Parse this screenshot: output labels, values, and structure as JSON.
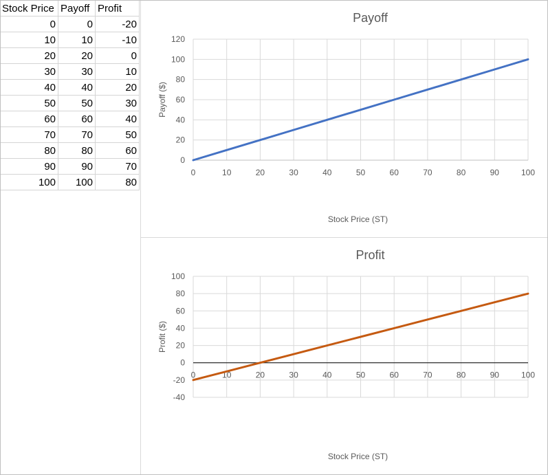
{
  "table": {
    "headers": [
      "Stock Price",
      "Payoff",
      "Profit"
    ],
    "rows": [
      [
        "0",
        "0",
        "-20"
      ],
      [
        "10",
        "10",
        "-10"
      ],
      [
        "20",
        "20",
        "0"
      ],
      [
        "30",
        "30",
        "10"
      ],
      [
        "40",
        "40",
        "20"
      ],
      [
        "50",
        "50",
        "30"
      ],
      [
        "60",
        "60",
        "40"
      ],
      [
        "70",
        "70",
        "50"
      ],
      [
        "80",
        "80",
        "60"
      ],
      [
        "90",
        "90",
        "70"
      ],
      [
        "100",
        "100",
        "80"
      ]
    ]
  },
  "chart_data": [
    {
      "type": "line",
      "title": "Payoff",
      "xlabel": "Stock Price (ST)",
      "ylabel": "Payoff ($)",
      "x": [
        0,
        10,
        20,
        30,
        40,
        50,
        60,
        70,
        80,
        90,
        100
      ],
      "series": [
        {
          "values": [
            0,
            10,
            20,
            30,
            40,
            50,
            60,
            70,
            80,
            90,
            100
          ],
          "color": "#4472c4"
        }
      ],
      "xlim": [
        0,
        100
      ],
      "ylim": [
        0,
        120
      ],
      "xticks": [
        0,
        10,
        20,
        30,
        40,
        50,
        60,
        70,
        80,
        90,
        100
      ],
      "yticks": [
        0,
        20,
        40,
        60,
        80,
        100,
        120
      ],
      "grid": true,
      "legend": "none"
    },
    {
      "type": "line",
      "title": "Profit",
      "xlabel": "Stock Price (ST)",
      "ylabel": "Profit ($)",
      "x": [
        0,
        10,
        20,
        30,
        40,
        50,
        60,
        70,
        80,
        90,
        100
      ],
      "series": [
        {
          "values": [
            -20,
            -10,
            0,
            10,
            20,
            30,
            40,
            50,
            60,
            70,
            80
          ],
          "color": "#c55a11"
        }
      ],
      "xlim": [
        0,
        100
      ],
      "ylim": [
        -40,
        100
      ],
      "xticks": [
        0,
        10,
        20,
        30,
        40,
        50,
        60,
        70,
        80,
        90,
        100
      ],
      "yticks": [
        -40,
        -20,
        0,
        20,
        40,
        60,
        80,
        100
      ],
      "grid": true,
      "legend": "none"
    }
  ]
}
